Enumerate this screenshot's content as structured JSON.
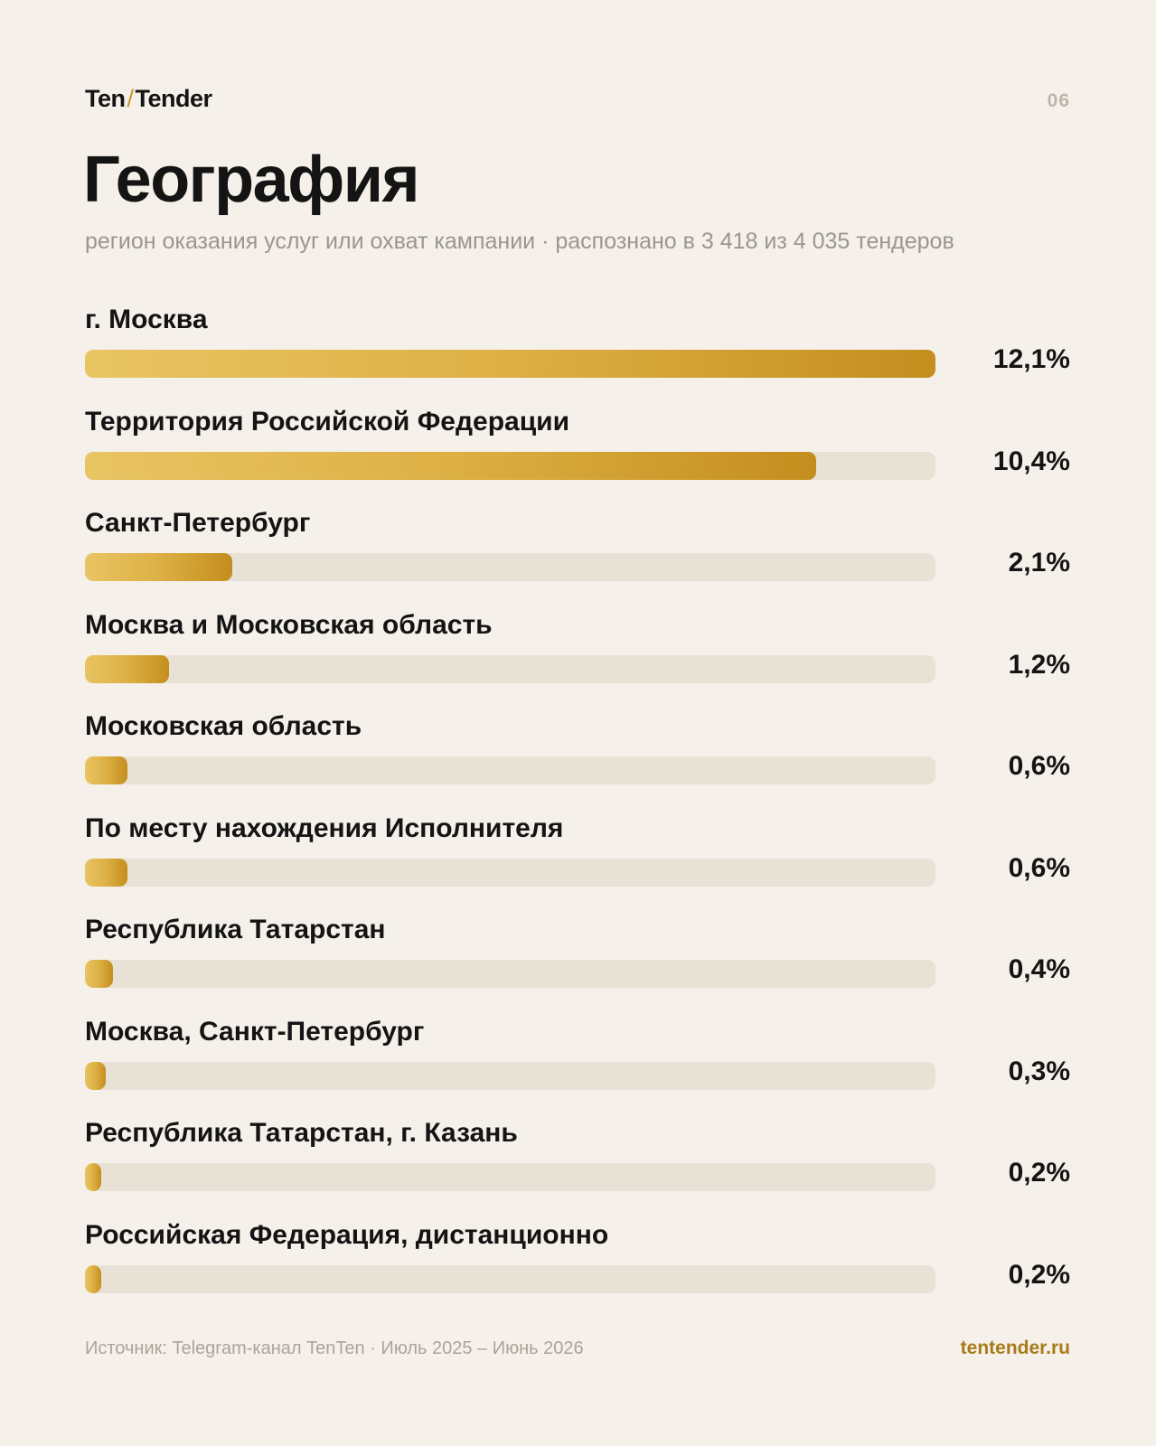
{
  "header": {
    "brand_left": "Ten",
    "brand_slash": "/",
    "brand_right": "Tender",
    "page_number": "06"
  },
  "chart_data": {
    "type": "bar",
    "orientation": "horizontal",
    "title": "География",
    "subtitle": "регион оказания услуг или охват кампании · распознано в 3 418 из 4 035 тендеров",
    "categories": [
      "г. Москва",
      "Территория Российской Федерации",
      "Санкт-Петербург",
      "Москва и Московская область",
      "Московская область",
      "По месту нахождения Исполнителя",
      "Республика Татарстан",
      "Москва, Санкт-Петербург",
      "Республика Татарстан, г. Казань",
      "Российская Федерация, дистанционно"
    ],
    "values": [
      12.1,
      10.4,
      2.1,
      1.2,
      0.6,
      0.6,
      0.4,
      0.3,
      0.2,
      0.2
    ],
    "value_labels": [
      "12,1%",
      "10,4%",
      "2,1%",
      "1,2%",
      "0,6%",
      "0,6%",
      "0,4%",
      "0,3%",
      "0,2%",
      "0,2%"
    ],
    "unit": "%",
    "xlim": [
      0,
      12.1
    ],
    "grid": false,
    "legend": "none",
    "bar_colors": {
      "start": "#e9c463",
      "end": "#c48e1e",
      "track": "#e8e1d6"
    }
  },
  "footer": {
    "source": "Источник: Telegram-канал TenTen · Июль 2025 – Июнь 2026",
    "site": "tentender.ru"
  }
}
